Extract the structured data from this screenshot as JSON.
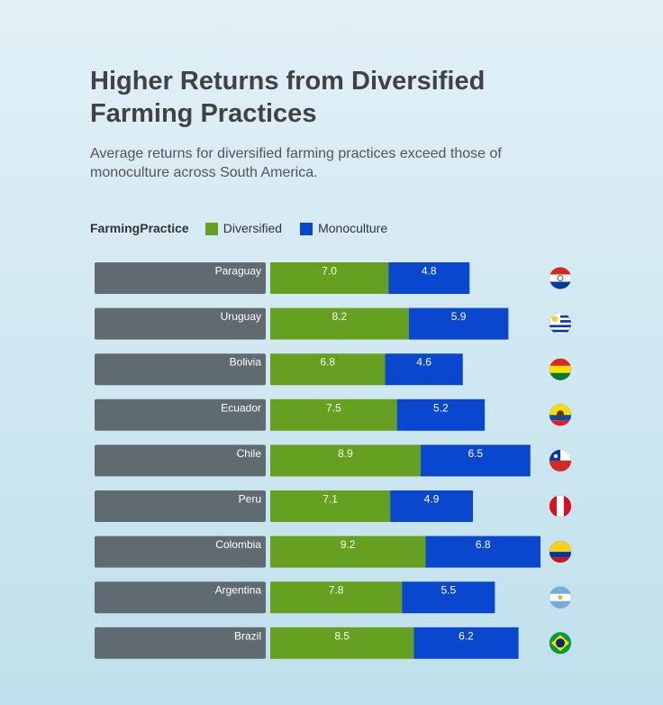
{
  "title": "Higher Returns from Diversified Farming Practices",
  "subtitle": "Average returns for diversified farming practices exceed those of monoculture across South America.",
  "legend": {
    "title": "FarmingPractice",
    "items": [
      {
        "name": "Diversified",
        "color": "#66a021"
      },
      {
        "name": "Monoculture",
        "color": "#0a47cf"
      }
    ]
  },
  "chart_data": {
    "type": "bar",
    "orientation": "horizontal",
    "stacked": true,
    "categories": [
      "Paraguay",
      "Uruguay",
      "Bolivia",
      "Ecuador",
      "Chile",
      "Peru",
      "Colombia",
      "Argentina",
      "Brazil"
    ],
    "series": [
      {
        "name": "Diversified",
        "color": "#66a021",
        "values": [
          7.0,
          8.2,
          6.8,
          7.5,
          8.9,
          7.1,
          9.2,
          7.8,
          8.5
        ]
      },
      {
        "name": "Monoculture",
        "color": "#0a47cf",
        "values": [
          4.8,
          5.9,
          4.6,
          5.2,
          6.5,
          4.9,
          6.8,
          5.5,
          6.2
        ]
      }
    ],
    "category_label_color": "#5f6b71",
    "flag_icons": [
      "paraguay-flag-icon",
      "uruguay-flag-icon",
      "bolivia-flag-icon",
      "ecuador-flag-icon",
      "chile-flag-icon",
      "peru-flag-icon",
      "colombia-flag-icon",
      "argentina-flag-icon",
      "brazil-flag-icon"
    ],
    "legend_position": "top-left",
    "grid": false
  }
}
